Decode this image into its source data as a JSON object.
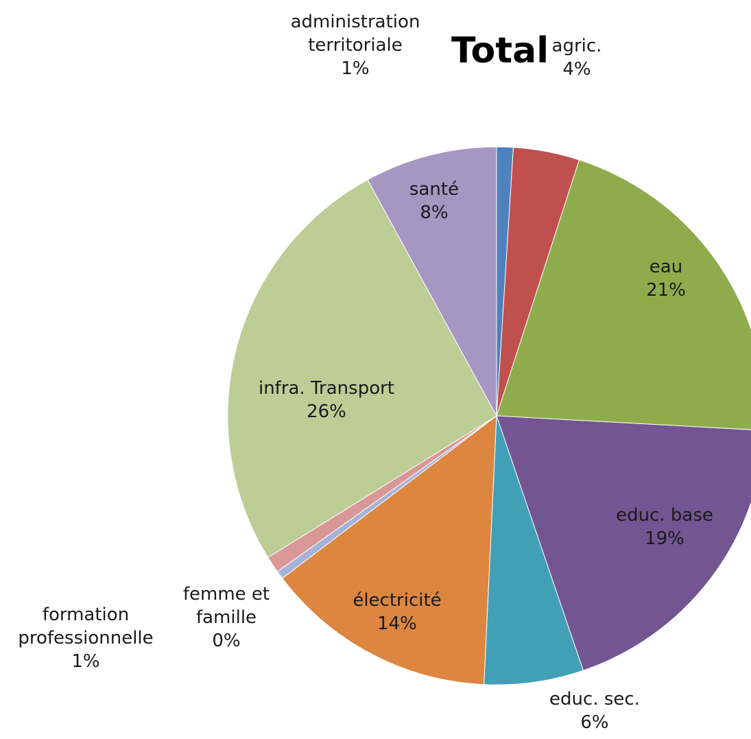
{
  "chart_data": {
    "type": "pie",
    "title": "Total",
    "start_angle_deg": 0,
    "direction": "clockwise",
    "slices": [
      {
        "name": "administration territoriale",
        "label": "administration\nterritoriale",
        "pct_label": "1%",
        "value": 1,
        "color": "#4f81bd"
      },
      {
        "name": "agric.",
        "label": "agric.",
        "pct_label": "4%",
        "value": 4,
        "color": "#c0504d"
      },
      {
        "name": "eau",
        "label": "eau",
        "pct_label": "21%",
        "value": 21,
        "color": "#8fac4c"
      },
      {
        "name": "educ. base",
        "label": "educ. base",
        "pct_label": "19%",
        "value": 19,
        "color": "#725591"
      },
      {
        "name": "educ. sec.",
        "label": "educ. sec.",
        "pct_label": "6%",
        "value": 6,
        "color": "#42a0b6"
      },
      {
        "name": "électricité",
        "label": "électricité",
        "pct_label": "14%",
        "value": 14,
        "color": "#dc8640"
      },
      {
        "name": "femme et famille",
        "label": "femme et\nfamille",
        "pct_label": "0%",
        "value": 0.5,
        "color": "#a5b3d8"
      },
      {
        "name": "formation professionnelle",
        "label": "formation\nprofessionnelle",
        "pct_label": "1%",
        "value": 1,
        "color": "#d99795"
      },
      {
        "name": "infra. Transport",
        "label": "infra. Transport",
        "pct_label": "26%",
        "value": 26,
        "color": "#bccd95"
      },
      {
        "name": "santé",
        "label": "santé",
        "pct_label": "8%",
        "value": 8,
        "color": "#a696c2"
      }
    ]
  }
}
